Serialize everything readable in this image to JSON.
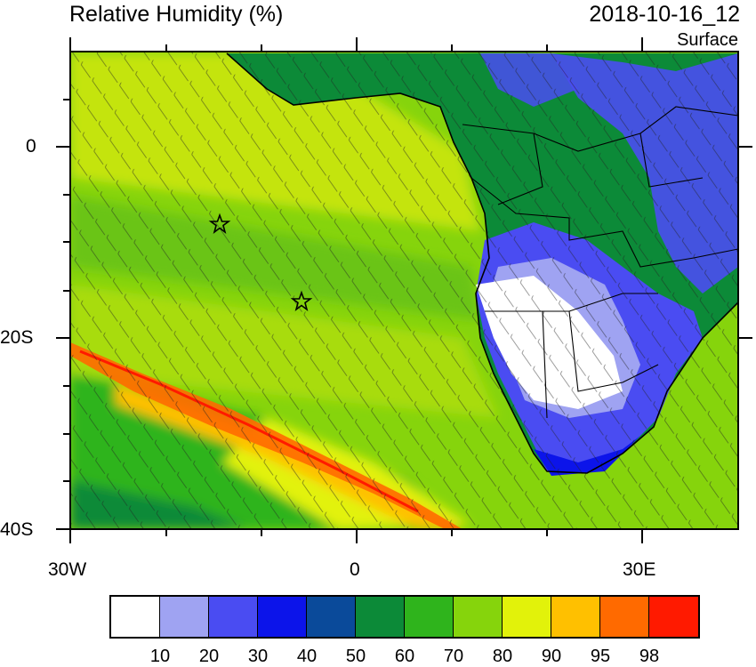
{
  "header": {
    "title": "Relative Humidity (%)",
    "valid_time": "2018-10-16_12",
    "level": "Surface"
  },
  "axes": {
    "lat_labels": [
      "0",
      "20S",
      "40S"
    ],
    "lon_labels": [
      "30W",
      "0",
      "30E"
    ]
  },
  "colorbar": {
    "colors": [
      "#ffffff",
      "#9fa3f2",
      "#4a4cf2",
      "#0c14ea",
      "#0a4a9a",
      "#0c8a38",
      "#2fb41c",
      "#86d40c",
      "#e2f20a",
      "#ffc000",
      "#ff6a00",
      "#ff1a00"
    ],
    "labels": [
      "10",
      "20",
      "30",
      "40",
      "50",
      "60",
      "70",
      "80",
      "90",
      "95",
      "98"
    ]
  },
  "markers": [
    {
      "name": "station-star-1",
      "symbol": "star"
    },
    {
      "name": "station-star-2",
      "symbol": "star"
    }
  ]
}
